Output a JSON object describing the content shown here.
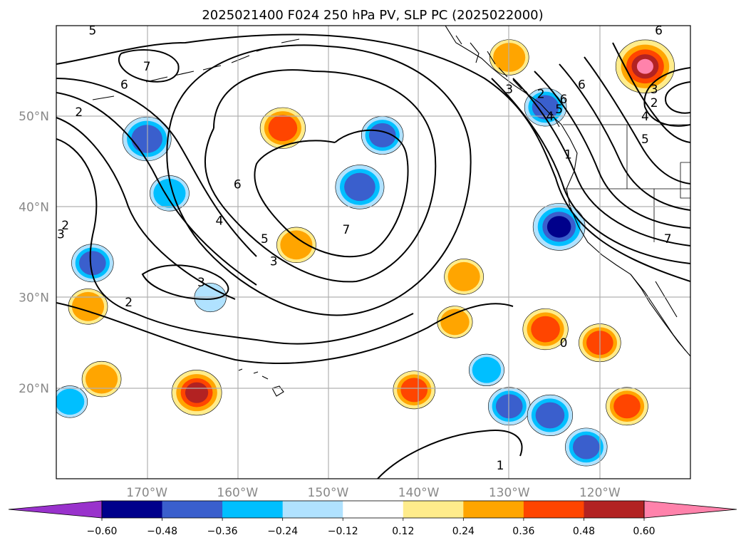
{
  "chart_data": {
    "type": "heatmap",
    "title": "2025021400 F024 250 hPa PV, SLP PC (2025022000)",
    "xlim": [
      -180,
      -110
    ],
    "ylim": [
      10,
      60
    ],
    "grid": true,
    "x_ticks": [
      {
        "lon": -170,
        "label": "170°W"
      },
      {
        "lon": -160,
        "label": "160°W"
      },
      {
        "lon": -150,
        "label": "150°W"
      },
      {
        "lon": -140,
        "label": "140°W"
      },
      {
        "lon": -130,
        "label": "130°W"
      },
      {
        "lon": -120,
        "label": "120°W"
      }
    ],
    "y_ticks": [
      {
        "lat": 20,
        "label": "20°N"
      },
      {
        "lat": 30,
        "label": "30°N"
      },
      {
        "lat": 40,
        "label": "40°N"
      },
      {
        "lat": 50,
        "label": "50°N"
      }
    ],
    "colorbar": {
      "levels": [
        -0.72,
        -0.6,
        -0.48,
        -0.36,
        -0.24,
        -0.12,
        0.12,
        0.24,
        0.36,
        0.48,
        0.6,
        0.72
      ],
      "tick_labels": [
        "−0.60",
        "−0.48",
        "−0.36",
        "−0.24",
        "−0.12",
        "0.12",
        "0.24",
        "0.36",
        "0.48",
        "0.60"
      ],
      "colors": [
        "#9932cc",
        "#00008b",
        "#3a5fcd",
        "#00bfff",
        "#b0e2ff",
        "#ffffff",
        "#ffec8b",
        "#ffa500",
        "#ff4500",
        "#b22222",
        "#ff82ab",
        "#ff82ab"
      ],
      "extend": "both"
    },
    "pv_anomalies": [
      {
        "lon": -170,
        "lat": 47.5,
        "value": -0.5
      },
      {
        "lon": -167.5,
        "lat": 41.5,
        "value": -0.36
      },
      {
        "lon": -146.5,
        "lat": 42.2,
        "value": -0.5
      },
      {
        "lon": -176,
        "lat": 33.8,
        "value": -0.4
      },
      {
        "lon": -163,
        "lat": 30.0,
        "value": -0.25
      },
      {
        "lon": -144,
        "lat": 47.9,
        "value": -0.4
      },
      {
        "lon": -124.5,
        "lat": 37.8,
        "value": -0.55
      },
      {
        "lon": -126,
        "lat": 51.0,
        "value": -0.4
      },
      {
        "lon": -132.5,
        "lat": 22.0,
        "value": -0.3
      },
      {
        "lon": -130,
        "lat": 18.0,
        "value": -0.4
      },
      {
        "lon": -125.5,
        "lat": 17.0,
        "value": -0.45
      },
      {
        "lon": -121.5,
        "lat": 13.5,
        "value": -0.4
      },
      {
        "lon": -178.5,
        "lat": 18.5,
        "value": -0.3
      },
      {
        "lon": -155,
        "lat": 48.7,
        "value": 0.45
      },
      {
        "lon": -164.5,
        "lat": 19.5,
        "value": 0.52
      },
      {
        "lon": -126,
        "lat": 26.5,
        "value": 0.45
      },
      {
        "lon": -115,
        "lat": 55.5,
        "value": 0.65
      },
      {
        "lon": -140.5,
        "lat": 19.8,
        "value": 0.4
      },
      {
        "lon": -120,
        "lat": 25.0,
        "value": 0.4
      },
      {
        "lon": -117,
        "lat": 18.0,
        "value": 0.4
      },
      {
        "lon": -135,
        "lat": 32.3,
        "value": 0.36
      },
      {
        "lon": -153.5,
        "lat": 35.8,
        "value": 0.36
      },
      {
        "lon": -176.5,
        "lat": 29.0,
        "value": 0.36
      },
      {
        "lon": -175,
        "lat": 21.0,
        "value": 0.36
      },
      {
        "lon": -130,
        "lat": 56.5,
        "value": 0.36
      },
      {
        "lon": -136,
        "lat": 27.3,
        "value": 0.3
      }
    ],
    "slp_contour_labels": [
      {
        "text": "5",
        "lon": -176,
        "lat": 59.5
      },
      {
        "text": "7",
        "lon": -170,
        "lat": 55.5
      },
      {
        "text": "6",
        "lon": -172.5,
        "lat": 53.5
      },
      {
        "text": "2",
        "lon": -177.5,
        "lat": 50.5
      },
      {
        "text": "6",
        "lon": -160,
        "lat": 42.5
      },
      {
        "text": "4",
        "lon": -162,
        "lat": 38.5
      },
      {
        "text": "5",
        "lon": -157,
        "lat": 36.5
      },
      {
        "text": "3",
        "lon": -156,
        "lat": 34.0
      },
      {
        "text": "7",
        "lon": -148,
        "lat": 37.5
      },
      {
        "text": "2",
        "lon": -179,
        "lat": 38.0
      },
      {
        "text": "3",
        "lon": -179.5,
        "lat": 37.0
      },
      {
        "text": "3",
        "lon": -164,
        "lat": 31.7
      },
      {
        "text": "2",
        "lon": -172,
        "lat": 29.5
      },
      {
        "text": "1",
        "lon": -131,
        "lat": 11.5
      },
      {
        "text": "0",
        "lon": -124,
        "lat": 25.0
      },
      {
        "text": "1",
        "lon": -123.5,
        "lat": 45.8
      },
      {
        "text": "2",
        "lon": -126.5,
        "lat": 52.5
      },
      {
        "text": "3",
        "lon": -130,
        "lat": 53.0
      },
      {
        "text": "4",
        "lon": -125.5,
        "lat": 50.0
      },
      {
        "text": "5",
        "lon": -124.5,
        "lat": 50.8
      },
      {
        "text": "6",
        "lon": -124,
        "lat": 51.9
      },
      {
        "text": "6",
        "lon": -122,
        "lat": 53.5
      },
      {
        "text": "5",
        "lon": -115,
        "lat": 47.5
      },
      {
        "text": "4",
        "lon": -115,
        "lat": 50.0
      },
      {
        "text": "3",
        "lon": -114,
        "lat": 53.0
      },
      {
        "text": "2",
        "lon": -114,
        "lat": 51.5
      },
      {
        "text": "7",
        "lon": -112.5,
        "lat": 36.5
      },
      {
        "text": "6",
        "lon": -113.5,
        "lat": 59.5
      }
    ]
  }
}
